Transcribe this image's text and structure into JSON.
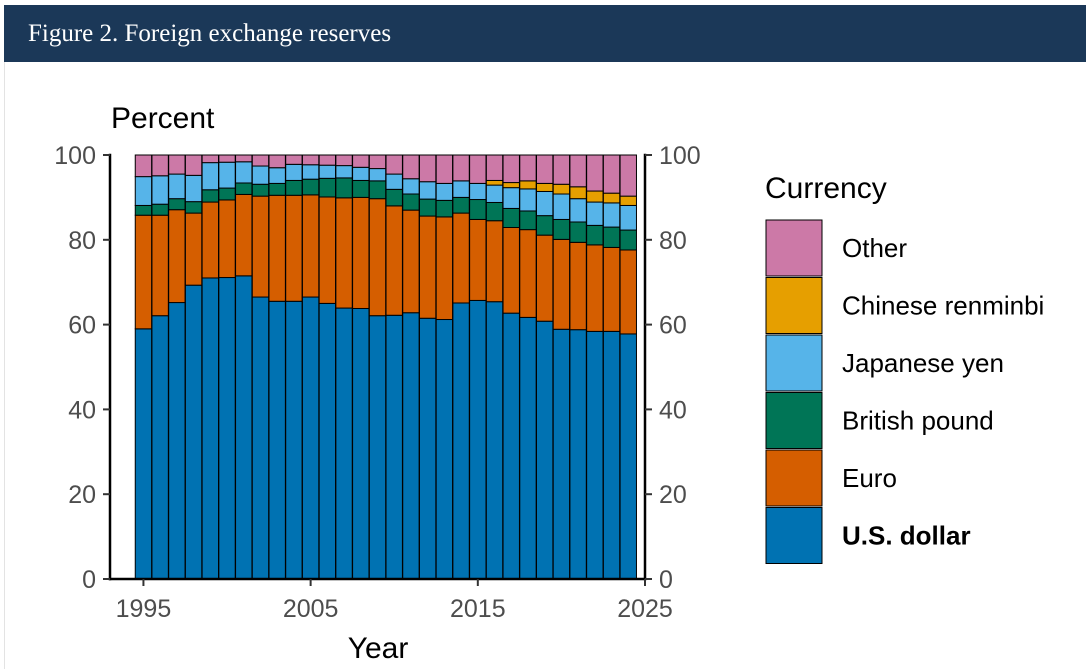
{
  "header": {
    "title": "Figure 2. Foreign exchange reserves"
  },
  "chart_data": {
    "type": "bar",
    "stacked": true,
    "title": "Figure 2. Foreign exchange reserves",
    "ylabel": "Percent",
    "xlabel": "Year",
    "ylim": [
      0,
      100
    ],
    "xlim": [
      1993,
      2025
    ],
    "yticks": [
      0,
      20,
      40,
      60,
      80,
      100
    ],
    "xticks": [
      1995,
      2005,
      2015,
      2025
    ],
    "grid": false,
    "secondary_y_axis": true,
    "legend_title": "Currency",
    "legend_position": "right",
    "years": [
      1995,
      1996,
      1997,
      1998,
      1999,
      2000,
      2001,
      2002,
      2003,
      2004,
      2005,
      2006,
      2007,
      2008,
      2009,
      2010,
      2011,
      2012,
      2013,
      2014,
      2015,
      2016,
      2017,
      2018,
      2019,
      2020,
      2021,
      2022,
      2023,
      2024
    ],
    "series": [
      {
        "name": "U.S. dollar",
        "color": "#0072b2",
        "bold": true,
        "values": [
          59.0,
          62.1,
          65.2,
          69.3,
          71.0,
          71.1,
          71.5,
          66.5,
          65.5,
          65.5,
          66.5,
          65.0,
          63.9,
          63.8,
          62.1,
          62.2,
          62.8,
          61.5,
          61.2,
          65.1,
          65.7,
          65.4,
          62.7,
          61.7,
          60.8,
          58.9,
          58.8,
          58.4,
          58.4,
          57.8
        ]
      },
      {
        "name": "Euro",
        "color": "#d55e00",
        "values": [
          26.8,
          23.7,
          21.9,
          17.0,
          17.9,
          18.3,
          19.2,
          23.8,
          25.0,
          25.0,
          24.1,
          25.1,
          26.0,
          26.2,
          27.6,
          25.8,
          24.2,
          24.1,
          24.2,
          21.2,
          19.1,
          19.1,
          20.2,
          20.7,
          20.3,
          21.2,
          20.6,
          20.4,
          19.8,
          19.8
        ]
      },
      {
        "name": "British pound",
        "color": "#007556",
        "values": [
          2.3,
          2.6,
          2.6,
          2.7,
          2.9,
          2.8,
          2.7,
          2.8,
          2.8,
          3.5,
          3.7,
          4.4,
          4.7,
          4.0,
          4.2,
          3.9,
          3.8,
          4.0,
          3.9,
          3.7,
          4.7,
          4.3,
          4.5,
          4.4,
          4.6,
          4.7,
          4.8,
          4.6,
          4.8,
          4.7
        ]
      },
      {
        "name": "Japanese yen",
        "color": "#56b4e9",
        "values": [
          6.8,
          6.7,
          5.8,
          6.2,
          6.4,
          6.1,
          5.0,
          4.3,
          3.7,
          3.8,
          3.4,
          3.1,
          2.9,
          3.1,
          2.9,
          3.6,
          3.6,
          4.1,
          4.0,
          3.9,
          3.8,
          4.1,
          4.9,
          5.2,
          5.7,
          6.0,
          5.5,
          5.5,
          5.7,
          5.8
        ]
      },
      {
        "name": "Chinese renminbi",
        "color": "#e69f00",
        "values": [
          0,
          0,
          0,
          0,
          0,
          0,
          0,
          0,
          0,
          0,
          0,
          0,
          0,
          0,
          0,
          0,
          0,
          0,
          0,
          0,
          0,
          1.1,
          1.2,
          1.9,
          1.9,
          2.3,
          2.8,
          2.6,
          2.3,
          2.2
        ]
      },
      {
        "name": "Other",
        "color": "#cc79a7",
        "values": [
          5.1,
          4.9,
          4.5,
          4.8,
          1.8,
          1.7,
          1.6,
          2.6,
          3.0,
          2.2,
          2.3,
          2.4,
          2.5,
          2.9,
          3.2,
          4.5,
          5.6,
          6.3,
          6.7,
          6.1,
          6.7,
          6.0,
          6.5,
          6.1,
          6.7,
          6.9,
          7.5,
          8.5,
          9.0,
          9.7
        ]
      }
    ]
  }
}
